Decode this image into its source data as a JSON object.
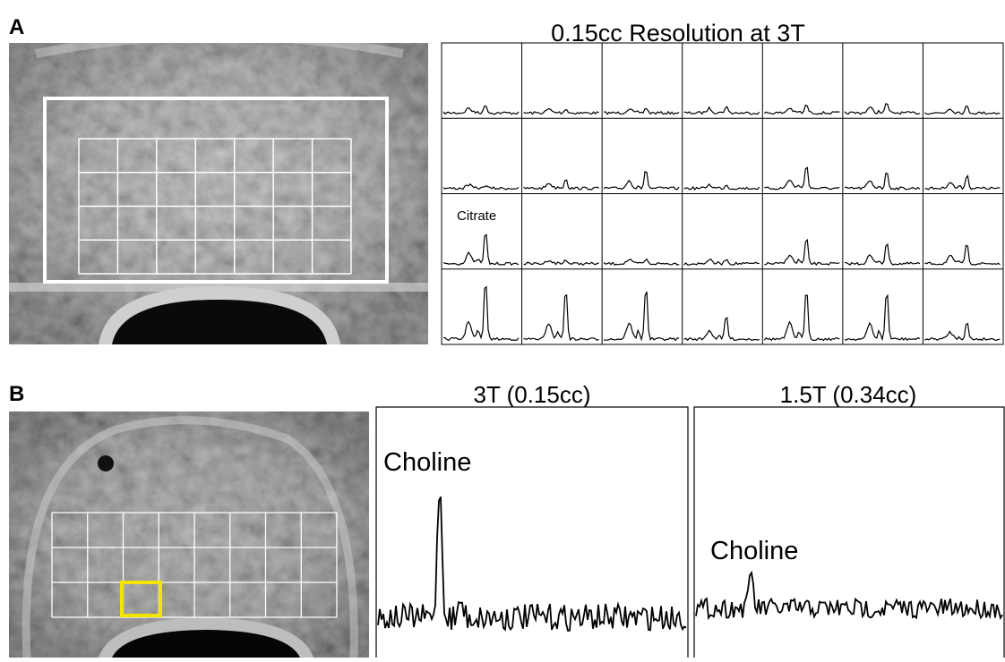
{
  "panels": [
    {
      "label": "A",
      "title": "0.15cc Resolution at 3T",
      "annotation": "Citrate"
    },
    {
      "label": "B",
      "spectra": [
        {
          "title": "3T (0.15cc)",
          "annotation": "Choline"
        },
        {
          "title": "1.5T (0.34cc)",
          "annotation": "Choline"
        }
      ]
    }
  ]
}
